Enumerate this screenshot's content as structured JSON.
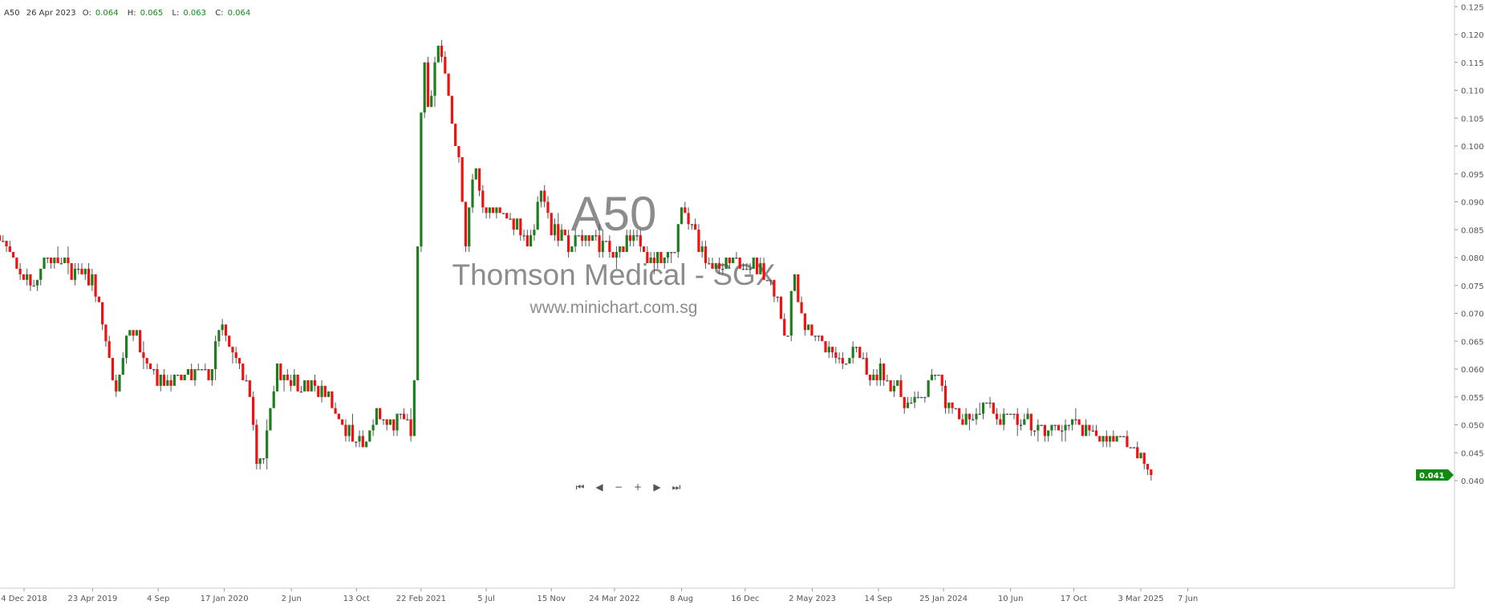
{
  "header": {
    "symbol": "A50",
    "date": "26 Apr 2023",
    "o_label": "O:",
    "o": "0.064",
    "h_label": "H:",
    "h": "0.065",
    "l_label": "L:",
    "l": "0.063",
    "c_label": "C:",
    "c": "0.064"
  },
  "watermark": {
    "code": "A50",
    "name": "Thomson Medical - SGX",
    "site": "www.minichart.com.sg"
  },
  "nav": [
    {
      "icon": "first-icon",
      "glyph": "⏮"
    },
    {
      "icon": "prev-icon",
      "glyph": "◀"
    },
    {
      "icon": "zoom-out-icon",
      "glyph": "−"
    },
    {
      "icon": "zoom-in-icon",
      "glyph": "+"
    },
    {
      "icon": "next-icon",
      "glyph": "▶"
    },
    {
      "icon": "last-icon",
      "glyph": "⏭"
    }
  ],
  "colors": {
    "up": "#1e7d1e",
    "down": "#f01010",
    "flat": "#555555",
    "last_price": "#138a13",
    "axis": "#cccccc"
  },
  "chart_data": {
    "type": "candlestick",
    "interval": "weekly",
    "ylim": [
      0.038,
      0.125
    ],
    "yticks": [
      "0.040",
      "0.045",
      "0.050",
      "0.055",
      "0.060",
      "0.065",
      "0.070",
      "0.075",
      "0.080",
      "0.085",
      "0.090",
      "0.095",
      "0.100",
      "0.105",
      "0.110",
      "0.115",
      "0.120",
      "0.125"
    ],
    "xticks": [
      {
        "date": "2018-12-04",
        "label": "4 Dec 2018"
      },
      {
        "date": "2019-04-23",
        "label": "23 Apr 2019"
      },
      {
        "date": "2019-09-04",
        "label": "4 Sep"
      },
      {
        "date": "2020-01-17",
        "label": "17 Jan 2020"
      },
      {
        "date": "2020-06-02",
        "label": "2 Jun"
      },
      {
        "date": "2020-10-13",
        "label": "13 Oct"
      },
      {
        "date": "2021-02-22",
        "label": "22 Feb 2021"
      },
      {
        "date": "2021-07-05",
        "label": "5 Jul"
      },
      {
        "date": "2021-11-15",
        "label": "15 Nov"
      },
      {
        "date": "2022-03-24",
        "label": "24 Mar 2022"
      },
      {
        "date": "2022-08-08",
        "label": "8 Aug"
      },
      {
        "date": "2022-12-16",
        "label": "16 Dec"
      },
      {
        "date": "2023-05-02",
        "label": "2 May 2023"
      },
      {
        "date": "2023-09-14",
        "label": "14 Sep"
      },
      {
        "date": "2024-01-25",
        "label": "25 Jan 2024"
      },
      {
        "date": "2024-06-10",
        "label": "10 Jun"
      },
      {
        "date": "2024-10-17",
        "label": "17 Oct"
      },
      {
        "date": "2025-03-03",
        "label": "3 Mar 2025"
      },
      {
        "date": "2025-06-07",
        "label": "7 Jun"
      }
    ],
    "last_price": "0.041",
    "close_path": {
      "x": [
        "2018-10-15",
        "2018-11-15",
        "2018-12-20",
        "2019-01-15",
        "2019-02-15",
        "2019-03-20",
        "2019-04-23",
        "2019-05-10",
        "2019-06-10",
        "2019-07-05",
        "2019-08-10",
        "2019-09-04",
        "2019-10-15",
        "2019-11-20",
        "2019-12-20",
        "2020-01-10",
        "2020-01-30",
        "2020-02-20",
        "2020-03-10",
        "2020-03-25",
        "2020-04-10",
        "2020-05-05",
        "2020-06-02",
        "2020-07-10",
        "2020-08-10",
        "2020-09-01",
        "2020-09-25",
        "2020-10-13",
        "2020-11-01",
        "2020-11-20",
        "2020-12-20",
        "2021-01-20",
        "2021-02-05",
        "2021-02-12",
        "2021-02-19",
        "2021-02-26",
        "2021-03-10",
        "2021-03-25",
        "2021-04-10",
        "2021-04-25",
        "2021-05-10",
        "2021-05-25",
        "2021-06-10",
        "2021-07-05",
        "2021-08-10",
        "2021-09-10",
        "2021-10-01",
        "2021-10-25",
        "2021-11-15",
        "2021-12-20",
        "2022-01-20",
        "2022-02-20",
        "2022-03-24",
        "2022-05-01",
        "2022-06-01",
        "2022-07-01",
        "2022-07-25",
        "2022-08-10",
        "2022-08-30",
        "2022-09-30",
        "2022-10-20",
        "2022-11-15",
        "2022-12-16",
        "2023-01-20",
        "2023-02-20",
        "2023-03-10",
        "2023-03-25",
        "2023-04-15",
        "2023-05-02",
        "2023-06-10",
        "2023-07-10",
        "2023-08-01",
        "2023-09-01",
        "2023-09-14",
        "2023-10-20",
        "2023-11-20",
        "2023-12-20",
        "2024-01-10",
        "2024-01-25",
        "2024-02-20",
        "2024-04-01",
        "2024-04-20",
        "2024-05-10",
        "2024-06-10",
        "2024-07-20",
        "2024-08-20",
        "2024-09-20",
        "2024-10-17",
        "2024-11-20",
        "2025-01-10",
        "2025-01-25",
        "2025-02-05",
        "2025-02-25",
        "2025-03-10",
        "2025-03-25"
      ],
      "close": [
        0.084,
        0.078,
        0.075,
        0.08,
        0.079,
        0.077,
        0.076,
        0.07,
        0.055,
        0.068,
        0.063,
        0.058,
        0.058,
        0.059,
        0.059,
        0.068,
        0.063,
        0.06,
        0.055,
        0.04,
        0.047,
        0.06,
        0.058,
        0.057,
        0.056,
        0.052,
        0.049,
        0.048,
        0.046,
        0.052,
        0.05,
        0.051,
        0.048,
        0.07,
        0.095,
        0.12,
        0.105,
        0.117,
        0.114,
        0.104,
        0.098,
        0.082,
        0.097,
        0.088,
        0.087,
        0.086,
        0.082,
        0.093,
        0.085,
        0.082,
        0.084,
        0.083,
        0.08,
        0.084,
        0.08,
        0.079,
        0.082,
        0.089,
        0.085,
        0.08,
        0.077,
        0.079,
        0.079,
        0.078,
        0.073,
        0.065,
        0.078,
        0.068,
        0.067,
        0.062,
        0.061,
        0.064,
        0.057,
        0.06,
        0.057,
        0.053,
        0.056,
        0.06,
        0.055,
        0.051,
        0.052,
        0.056,
        0.051,
        0.051,
        0.05,
        0.049,
        0.05,
        0.05,
        0.048,
        0.048,
        0.05,
        0.045,
        0.045,
        0.043,
        0.041
      ]
    }
  }
}
